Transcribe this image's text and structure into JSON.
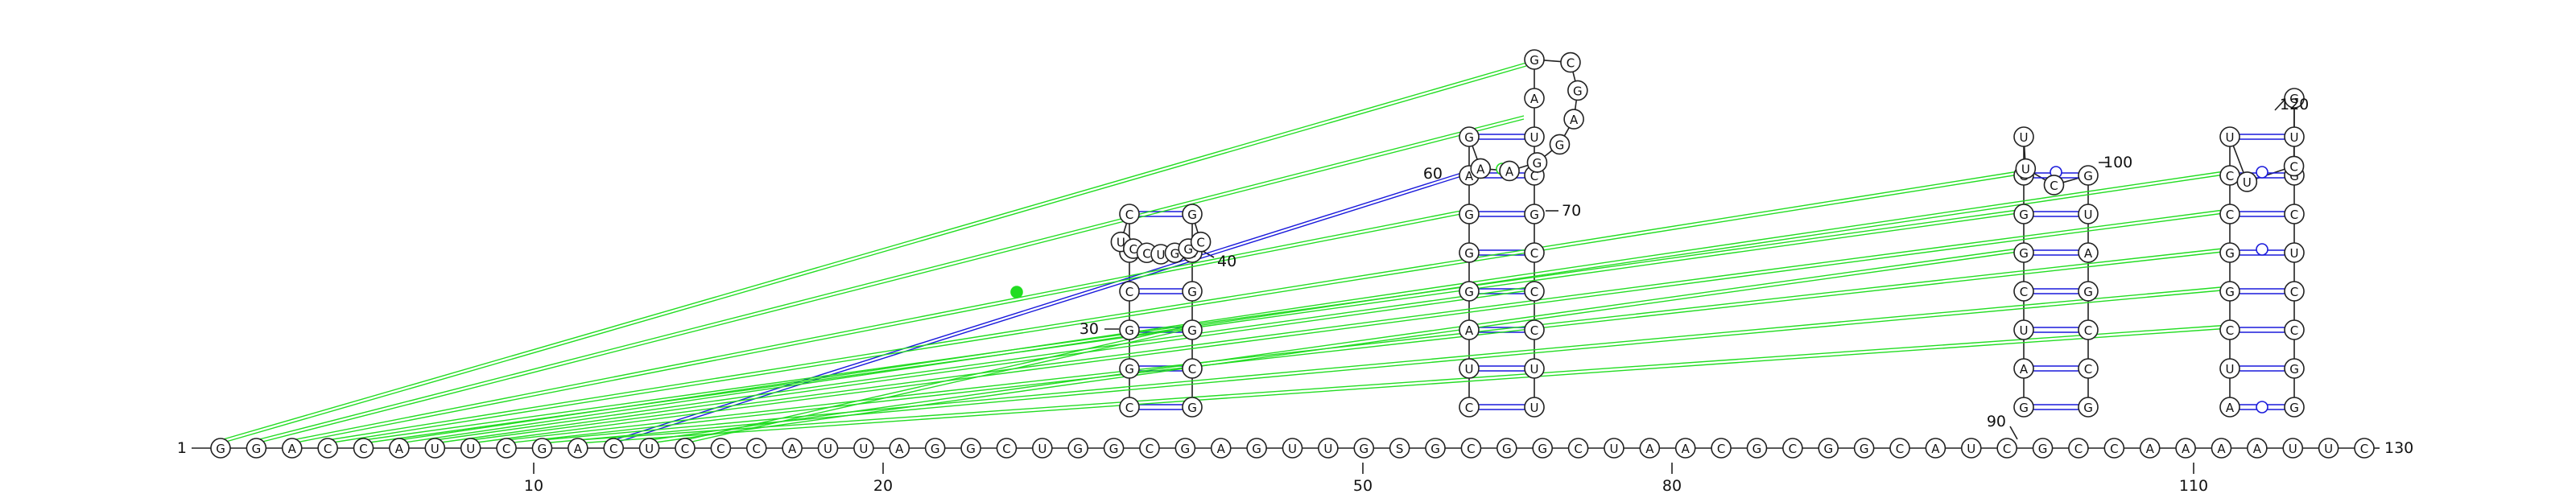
{
  "title": "",
  "sequence": "GGACCAUUCGACUCCCAUUAGGCUGGCGAGUUGSGCGGCUAACGCGGCAUCGCCAAAAUUC",
  "start_label": "1",
  "end_label": "130",
  "position_labels": [
    "10",
    "20",
    "30",
    "40",
    "50",
    "60",
    "70",
    "80",
    "90",
    "100",
    "110",
    "120"
  ],
  "hairpins": [
    {
      "name": "hairpin-1",
      "five_prime": "CGGCGC",
      "loop": "UCCUGGC",
      "three_prime": "GCGGCG",
      "label_near": "40"
    },
    {
      "name": "hairpin-2",
      "five_prime": "CUAGGGAG",
      "loop": "AAGGAGC",
      "three_prime": "UUCCCGCUAG",
      "label_near": "70"
    },
    {
      "name": "hairpin-3",
      "five_prime": "GAUCGGGU",
      "loop": "UC",
      "three_prime": "GCCGAUG",
      "label_near": "100"
    },
    {
      "name": "hairpin-4",
      "five_prime": "AUCGGCCU",
      "loop": "UC",
      "three_prime": "GGCCUCGUG",
      "label_near": "120"
    }
  ],
  "colors": {
    "backbone": "#222222",
    "canonical_pair": "#1a1adb",
    "pseudoknot": "#22dd22",
    "circle_fill": "#ffffff"
  }
}
